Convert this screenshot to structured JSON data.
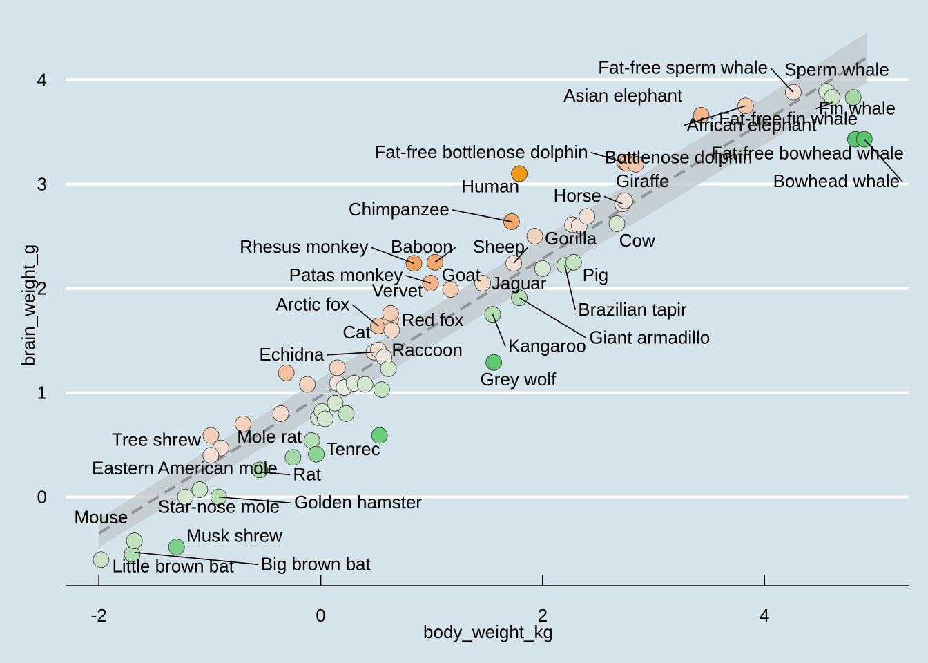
{
  "chart_data": {
    "type": "scatter",
    "xlabel": "body_weight_kg",
    "ylabel": "brain_weight_g",
    "xlim": [
      -2.3,
      5.3
    ],
    "ylim": [
      -0.85,
      4.5
    ],
    "x_ticks": [
      -2,
      0,
      2,
      4
    ],
    "y_ticks": [
      0,
      1,
      2,
      3,
      4
    ],
    "grid": "horizontal major lines",
    "legend": "none",
    "colors": {
      "background": "#d5e4eb",
      "gridline": "#ffffff",
      "axis_line": "#000000",
      "ribbon": "#c0c8cc",
      "trend_line": "#8f9597",
      "point_stroke": "#333333",
      "scale_green": "#5ac46e",
      "scale_mid": "#f1eae2",
      "scale_orange": "#f29a2e"
    },
    "trend": {
      "x": [
        -2.0,
        4.92
      ],
      "y": [
        -0.35,
        4.21
      ],
      "ribbon_lower": [
        -0.48,
        3.97
      ],
      "ribbon_upper": [
        -0.21,
        4.45
      ]
    },
    "points": [
      {
        "name": "Mouse",
        "x": -1.98,
        "y": -0.6,
        "fill": "#c9e3c6"
      },
      {
        "name": "Little brown bat",
        "x": -1.7,
        "y": -0.55,
        "fill": "#b4ddb5"
      },
      {
        "name": "Big brown bat",
        "x": -1.68,
        "y": -0.42,
        "fill": "#c3e2c1"
      },
      {
        "name": "Musk shrew",
        "x": -1.3,
        "y": -0.48,
        "fill": "#7dd08a"
      },
      {
        "name": "Star-nose mole",
        "x": -1.22,
        "y": 0.0,
        "fill": "#d4e6d0"
      },
      {
        "name": "",
        "x": -1.09,
        "y": 0.07,
        "fill": "#c9e3c6"
      },
      {
        "name": "Golden hamster",
        "x": -0.92,
        "y": 0.0,
        "fill": "#b4ddb5"
      },
      {
        "name": "Eastern American mole",
        "x": -0.55,
        "y": 0.26,
        "fill": "#a5d7a6"
      },
      {
        "name": "Tree shrew",
        "x": -0.99,
        "y": 0.59,
        "fill": "#f3cfb6"
      },
      {
        "name": "",
        "x": -0.9,
        "y": 0.47,
        "fill": "#f0dfd4"
      },
      {
        "name": "",
        "x": -0.99,
        "y": 0.4,
        "fill": "#f0dfd4"
      },
      {
        "name": "Rat",
        "x": -0.25,
        "y": 0.38,
        "fill": "#a5d7a6"
      },
      {
        "name": "Mole rat",
        "x": -0.08,
        "y": 0.54,
        "fill": "#b4ddb5"
      },
      {
        "name": "Tenrec",
        "x": -0.04,
        "y": 0.41,
        "fill": "#8dd394"
      },
      {
        "name": "",
        "x": 0.53,
        "y": 0.59,
        "fill": "#6ccd7c"
      },
      {
        "name": "",
        "x": -0.7,
        "y": 0.7,
        "fill": "#f2d3bf"
      },
      {
        "name": "",
        "x": -0.36,
        "y": 0.8,
        "fill": "#efdacb"
      },
      {
        "name": "",
        "x": -0.02,
        "y": 0.76,
        "fill": "#d4e6d0"
      },
      {
        "name": "",
        "x": 0.01,
        "y": 0.82,
        "fill": "#d4e6d0"
      },
      {
        "name": "",
        "x": 0.04,
        "y": 0.75,
        "fill": "#d4e6d0"
      },
      {
        "name": "",
        "x": 0.13,
        "y": 0.9,
        "fill": "#d4e6d0"
      },
      {
        "name": "",
        "x": 0.23,
        "y": 0.8,
        "fill": "#c3e2c1"
      },
      {
        "name": "",
        "x": -0.12,
        "y": 1.08,
        "fill": "#f2d3bf"
      },
      {
        "name": "Echidna",
        "x": -0.31,
        "y": 1.19,
        "fill": "#f2c2a0"
      },
      {
        "name": "",
        "x": 0.15,
        "y": 1.09,
        "fill": "#efe1d8"
      },
      {
        "name": "",
        "x": 0.21,
        "y": 1.05,
        "fill": "#e6ebe0"
      },
      {
        "name": "",
        "x": 0.3,
        "y": 1.09,
        "fill": "#dde8d8"
      },
      {
        "name": "",
        "x": 0.4,
        "y": 1.08,
        "fill": "#d4e6d0"
      },
      {
        "name": "",
        "x": 0.55,
        "y": 1.03,
        "fill": "#c3e2c1"
      },
      {
        "name": "",
        "x": 0.15,
        "y": 1.24,
        "fill": "#f2d3bf"
      },
      {
        "name": "Raccoon",
        "x": 0.48,
        "y": 1.39,
        "fill": "#f0dfd4"
      },
      {
        "name": "Cat",
        "x": 0.52,
        "y": 1.41,
        "fill": "#f0dfd4"
      },
      {
        "name": "",
        "x": 0.57,
        "y": 1.34,
        "fill": "#ebe8e0"
      },
      {
        "name": "",
        "x": 0.61,
        "y": 1.23,
        "fill": "#d4e6d0"
      },
      {
        "name": "Arctic fox",
        "x": 0.52,
        "y": 1.64,
        "fill": "#f2c2a0"
      },
      {
        "name": "Red fox",
        "x": 0.63,
        "y": 1.7,
        "fill": "#f2c8aa"
      },
      {
        "name": "",
        "x": 0.63,
        "y": 1.76,
        "fill": "#f2cdb3"
      },
      {
        "name": "",
        "x": 0.64,
        "y": 1.6,
        "fill": "#f0d7c6"
      },
      {
        "name": "Vervet",
        "x": 1.17,
        "y": 1.99,
        "fill": "#f2cdb3"
      },
      {
        "name": "Patas monkey",
        "x": 0.99,
        "y": 2.05,
        "fill": "#f2b48a"
      },
      {
        "name": "Rhesus monkey",
        "x": 0.84,
        "y": 2.24,
        "fill": "#f2a060"
      },
      {
        "name": "Baboon",
        "x": 1.03,
        "y": 2.25,
        "fill": "#f2a86c"
      },
      {
        "name": "Goat",
        "x": 1.46,
        "y": 2.05,
        "fill": "#f0d7c6"
      },
      {
        "name": "Kangaroo",
        "x": 1.55,
        "y": 1.75,
        "fill": "#b4ddb5"
      },
      {
        "name": "Grey wolf",
        "x": 1.56,
        "y": 1.29,
        "fill": "#5fc870"
      },
      {
        "name": "Giant armadillo",
        "x": 1.79,
        "y": 1.91,
        "fill": "#b4ddb5"
      },
      {
        "name": "Sheep",
        "x": 1.74,
        "y": 2.24,
        "fill": "#f0dfd4"
      },
      {
        "name": "Jaguar",
        "x": 2.0,
        "y": 2.19,
        "fill": "#d4e6d0"
      },
      {
        "name": "",
        "x": 1.93,
        "y": 2.5,
        "fill": "#f2d3bf"
      },
      {
        "name": "Brazilian tapir",
        "x": 2.2,
        "y": 2.22,
        "fill": "#c3e2c1"
      },
      {
        "name": "Pig",
        "x": 2.28,
        "y": 2.25,
        "fill": "#c3e2c1"
      },
      {
        "name": "Gorilla",
        "x": 2.27,
        "y": 2.61,
        "fill": "#efe1d8"
      },
      {
        "name": "",
        "x": 2.33,
        "y": 2.6,
        "fill": "#efe1d8"
      },
      {
        "name": "",
        "x": 2.4,
        "y": 2.69,
        "fill": "#f0dfd4"
      },
      {
        "name": "Chimpanzee",
        "x": 1.72,
        "y": 2.64,
        "fill": "#f2a86c"
      },
      {
        "name": "Human",
        "x": 1.79,
        "y": 3.1,
        "fill": "#f29a1e"
      },
      {
        "name": "Horse",
        "x": 2.72,
        "y": 2.81,
        "fill": "#efe1d8"
      },
      {
        "name": "",
        "x": 2.74,
        "y": 2.84,
        "fill": "#efe1d8"
      },
      {
        "name": "Cow",
        "x": 2.67,
        "y": 2.62,
        "fill": "#d4e6d0"
      },
      {
        "name": "Giraffe",
        "x": 2.74,
        "y": 3.21,
        "fill": "#f2c2a0"
      },
      {
        "name": "Fat-free bottlenose dolphin",
        "x": 2.76,
        "y": 3.2,
        "fill": "#f2c2a0"
      },
      {
        "name": "Bottlenose dolphin",
        "x": 2.84,
        "y": 3.19,
        "fill": "#f2c8aa"
      },
      {
        "name": "Asian elephant",
        "x": 3.43,
        "y": 3.66,
        "fill": "#f2b48a"
      },
      {
        "name": "African elephant",
        "x": 3.83,
        "y": 3.75,
        "fill": "#f2c8aa"
      },
      {
        "name": "Fat-free sperm whale",
        "x": 4.26,
        "y": 3.88,
        "fill": "#f0dfd4"
      },
      {
        "name": "Sperm whale",
        "x": 4.56,
        "y": 3.89,
        "fill": "#d4e6d0"
      },
      {
        "name": "Fat-free fin whale",
        "x": 4.61,
        "y": 3.83,
        "fill": "#c9e3c6"
      },
      {
        "name": "Fin whale",
        "x": 4.8,
        "y": 3.83,
        "fill": "#a5d7a6"
      },
      {
        "name": "Fat-free bowhead whale",
        "x": 4.82,
        "y": 3.43,
        "fill": "#5ac46e"
      },
      {
        "name": "Bowhead whale",
        "x": 4.9,
        "y": 3.43,
        "fill": "#5ac46e"
      }
    ],
    "annotations": [
      {
        "text": "Mouse",
        "lx": -1.98,
        "ly": -0.25,
        "anchor": "middle",
        "to": [
          -1.98,
          -0.6
        ],
        "line": false
      },
      {
        "text": "Little brown bat",
        "lx": -1.88,
        "ly": -0.72,
        "anchor": "start",
        "to": [
          -1.7,
          -0.55
        ],
        "line": false
      },
      {
        "text": "Big brown bat",
        "lx": -0.54,
        "ly": -0.7,
        "anchor": "start",
        "to": [
          -1.68,
          -0.53
        ],
        "line": true
      },
      {
        "text": "Musk shrew",
        "lx": -1.21,
        "ly": -0.43,
        "anchor": "start",
        "to": [
          -1.3,
          -0.48
        ],
        "line": false
      },
      {
        "text": "Star-nose mole",
        "lx": -0.37,
        "ly": -0.15,
        "anchor": "end",
        "to": [
          -1.22,
          0.0
        ],
        "line": false
      },
      {
        "text": "Golden hamster",
        "lx": -0.24,
        "ly": -0.11,
        "anchor": "start",
        "to": [
          -0.92,
          0.0
        ],
        "line": true
      },
      {
        "text": "Eastern American mole",
        "lx": -0.39,
        "ly": 0.22,
        "anchor": "end",
        "to": [
          -0.55,
          0.26
        ],
        "line": false
      },
      {
        "text": "Rat",
        "lx": -0.25,
        "ly": 0.16,
        "anchor": "start",
        "to": [
          -0.55,
          0.24
        ],
        "line": true
      },
      {
        "text": "Tree shrew",
        "lx": -1.08,
        "ly": 0.49,
        "anchor": "end",
        "to": [
          -0.99,
          0.55
        ],
        "line": false
      },
      {
        "text": "Mole rat",
        "lx": -0.17,
        "ly": 0.52,
        "anchor": "end",
        "to": [
          -0.08,
          0.54
        ],
        "line": false
      },
      {
        "text": "Tenrec",
        "lx": 0.05,
        "ly": 0.4,
        "anchor": "start",
        "to": [
          -0.04,
          0.41
        ],
        "line": false
      },
      {
        "text": "Echidna",
        "lx": 0.03,
        "ly": 1.31,
        "anchor": "end",
        "to": [
          0.48,
          1.39
        ],
        "line": true
      },
      {
        "text": "Raccoon",
        "lx": 0.64,
        "ly": 1.35,
        "anchor": "start",
        "to": [
          0.52,
          1.39
        ],
        "line": false
      },
      {
        "text": "Cat",
        "lx": 0.45,
        "ly": 1.52,
        "anchor": "end",
        "to": [
          0.52,
          1.41
        ],
        "line": false
      },
      {
        "text": "Arctic fox",
        "lx": 0.26,
        "ly": 1.79,
        "anchor": "end",
        "to": [
          0.52,
          1.64
        ],
        "line": true
      },
      {
        "text": "Red fox",
        "lx": 0.73,
        "ly": 1.64,
        "anchor": "start",
        "to": [
          0.63,
          1.7
        ],
        "line": false
      },
      {
        "text": "Vervet",
        "lx": 0.92,
        "ly": 1.92,
        "anchor": "end",
        "to": [
          1.17,
          1.99
        ],
        "line": false
      },
      {
        "text": "Patas monkey",
        "lx": 0.74,
        "ly": 2.07,
        "anchor": "end",
        "to": [
          0.99,
          2.05
        ],
        "line": true
      },
      {
        "text": "Rhesus monkey",
        "lx": 0.43,
        "ly": 2.34,
        "anchor": "end",
        "to": [
          0.84,
          2.24
        ],
        "line": true
      },
      {
        "text": "Baboon",
        "lx": 1.19,
        "ly": 2.34,
        "anchor": "end",
        "to": [
          1.03,
          2.25
        ],
        "line": true
      },
      {
        "text": "Goat",
        "lx": 1.09,
        "ly": 2.07,
        "anchor": "start",
        "to": [
          1.46,
          2.05
        ],
        "line": false
      },
      {
        "text": "Sheep",
        "lx": 1.84,
        "ly": 2.34,
        "anchor": "end",
        "to": [
          1.74,
          2.24
        ],
        "line": true
      },
      {
        "text": "Jaguar",
        "lx": 1.54,
        "ly": 1.99,
        "anchor": "start",
        "to": [
          2.0,
          2.19
        ],
        "line": false
      },
      {
        "text": "Kangaroo",
        "lx": 1.69,
        "ly": 1.39,
        "anchor": "start",
        "to": [
          1.55,
          1.75
        ],
        "line": true
      },
      {
        "text": "Grey wolf",
        "lx": 1.78,
        "ly": 1.07,
        "anchor": "middle",
        "to": [
          1.56,
          1.29
        ],
        "line": false
      },
      {
        "text": "Giant armadillo",
        "lx": 2.42,
        "ly": 1.47,
        "anchor": "start",
        "to": [
          1.79,
          1.91
        ],
        "line": true
      },
      {
        "text": "Brazilian tapir",
        "lx": 2.32,
        "ly": 1.74,
        "anchor": "start",
        "to": [
          2.2,
          2.22
        ],
        "line": true
      },
      {
        "text": "Pig",
        "lx": 2.36,
        "ly": 2.07,
        "anchor": "start",
        "to": [
          2.28,
          2.25
        ],
        "line": false
      },
      {
        "text": "Gorilla",
        "lx": 2.02,
        "ly": 2.42,
        "anchor": "start",
        "to": [
          2.27,
          2.61
        ],
        "line": false
      },
      {
        "text": "Chimpanzee",
        "lx": 1.16,
        "ly": 2.7,
        "anchor": "end",
        "to": [
          1.72,
          2.64
        ],
        "line": true
      },
      {
        "text": "Human",
        "lx": 1.79,
        "ly": 2.92,
        "anchor": "end",
        "to": [
          1.79,
          3.1
        ],
        "line": false
      },
      {
        "text": "Horse",
        "lx": 2.53,
        "ly": 2.83,
        "anchor": "end",
        "to": [
          2.72,
          2.81
        ],
        "line": true
      },
      {
        "text": "Cow",
        "lx": 2.69,
        "ly": 2.4,
        "anchor": "start",
        "to": [
          2.67,
          2.62
        ],
        "line": false
      },
      {
        "text": "Giraffe",
        "lx": 2.66,
        "ly": 2.97,
        "anchor": "start",
        "to": [
          2.74,
          3.1
        ],
        "line": false
      },
      {
        "text": "Fat-free bottlenose dolphin",
        "lx": 2.41,
        "ly": 3.25,
        "anchor": "end",
        "to": [
          2.76,
          3.2
        ],
        "line": true
      },
      {
        "text": "Bottlenose dolphin",
        "lx": 2.56,
        "ly": 3.2,
        "anchor": "start",
        "to": [
          2.84,
          3.19
        ],
        "line": false
      },
      {
        "text": "Asian elephant",
        "lx": 3.26,
        "ly": 3.79,
        "anchor": "end",
        "to": [
          3.43,
          3.66
        ],
        "line": false
      },
      {
        "text": "African elephant",
        "lx": 3.3,
        "ly": 3.51,
        "anchor": "start",
        "to": [
          3.83,
          3.75
        ],
        "line": true
      },
      {
        "text": "Fat-free sperm whale",
        "lx": 4.03,
        "ly": 4.06,
        "anchor": "end",
        "to": [
          4.26,
          3.88
        ],
        "line": true
      },
      {
        "text": "Sperm whale",
        "lx": 4.18,
        "ly": 4.04,
        "anchor": "start",
        "to": [
          4.26,
          3.88
        ],
        "line": false
      },
      {
        "text": "Fat-free fin whale",
        "lx": 3.59,
        "ly": 3.57,
        "anchor": "start",
        "to": [
          4.61,
          3.83
        ],
        "line": false
      },
      {
        "text": "Fin whale",
        "lx": 4.49,
        "ly": 3.67,
        "anchor": "start",
        "to": [
          4.61,
          3.78
        ],
        "line": true
      },
      {
        "text": "Fat-free bowhead whale",
        "lx": 3.52,
        "ly": 3.24,
        "anchor": "start",
        "to": [
          4.82,
          3.43
        ],
        "line": false
      },
      {
        "text": "Bowhead whale",
        "lx": 5.22,
        "ly": 2.97,
        "anchor": "end",
        "to": [
          4.9,
          3.43
        ],
        "line": true
      }
    ]
  }
}
